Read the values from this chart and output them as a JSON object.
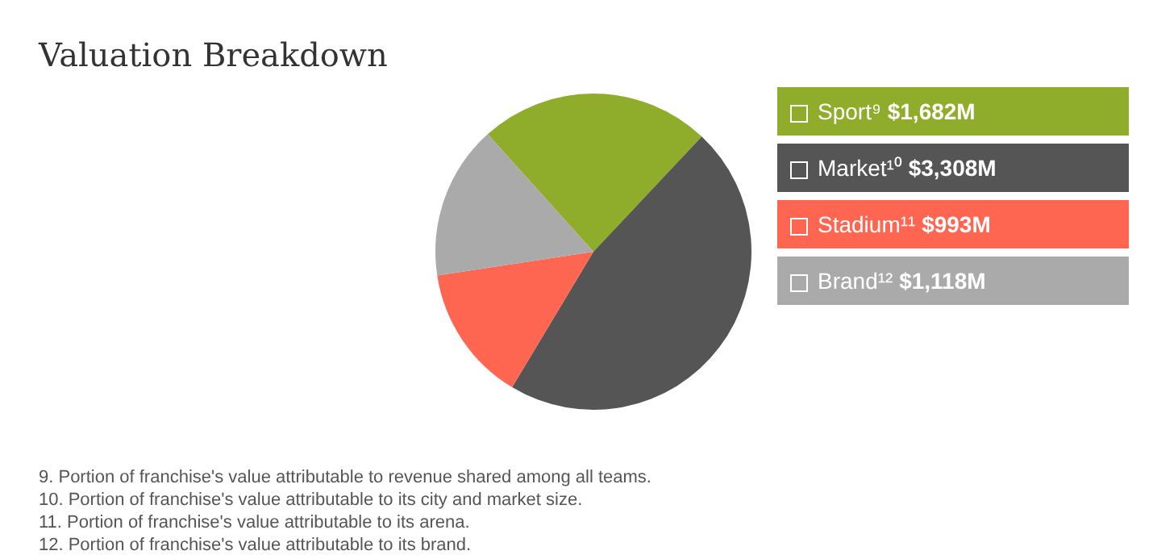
{
  "chart_data": {
    "type": "pie",
    "title": "Valuation Breakdown",
    "categories": [
      "Sport⁹",
      "Market¹⁰",
      "Stadium¹¹",
      "Brand¹²"
    ],
    "values": [
      1682,
      3308,
      993,
      1118
    ],
    "value_labels": [
      "$1,682M",
      "$3,308M",
      "$993M",
      "$1,118M"
    ],
    "colors": [
      "#8fad2b",
      "#555555",
      "#ff6652",
      "#aaaaaa"
    ],
    "legend": "right",
    "annotations": [
      "9. Portion of franchise's value attributable to revenue shared among all teams.",
      "10. Portion of franchise's value attributable to its city and market size.",
      "11. Portion of franchise's value attributable to its arena.",
      "12. Portion of franchise's value attributable to its brand."
    ]
  }
}
